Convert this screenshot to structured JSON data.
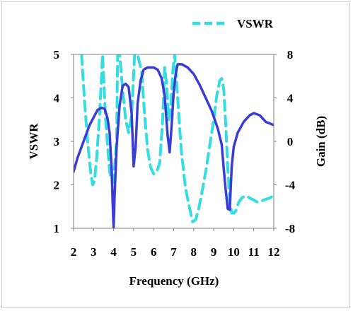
{
  "chart_data": {
    "type": "line",
    "xlabel": "Frequency (GHz)",
    "ylabel": "VSWR",
    "ylabel_right": "Gain (dB)",
    "xlim": [
      2,
      12
    ],
    "ylim": [
      1,
      5
    ],
    "ylim_right": [
      -8,
      8
    ],
    "x_ticks": [
      "2",
      "3",
      "4",
      "5",
      "6",
      "7",
      "8",
      "9",
      "10",
      "11",
      "12"
    ],
    "y_ticks_left": [
      "1",
      "2",
      "3",
      "4",
      "5"
    ],
    "y_ticks_right": [
      "-8",
      "-4",
      "0",
      "4",
      "8"
    ],
    "grid": false,
    "legend_position": "top-right",
    "series": [
      {
        "name": "VSWR",
        "axis": "left",
        "style": "dashed",
        "color": "#33dde0",
        "x": [
          2.4,
          2.55,
          2.7,
          2.85,
          2.95,
          3.05,
          3.15,
          3.3,
          3.45,
          3.55,
          3.6,
          3.8,
          3.95,
          4.05,
          4.15,
          4.2,
          4.3,
          4.45,
          4.6,
          4.75,
          4.9,
          5.05,
          5.2,
          5.4,
          5.55,
          5.7,
          5.85,
          6.0,
          6.15,
          6.3,
          6.45,
          6.55,
          6.65,
          6.75,
          6.85,
          6.95,
          7.05,
          7.2,
          7.3,
          7.4,
          7.6,
          7.8,
          7.95,
          8.1,
          8.25,
          8.4,
          8.6,
          8.8,
          9.0,
          9.15,
          9.3,
          9.4,
          9.5,
          9.6,
          9.7,
          9.8,
          9.9,
          10.0,
          10.1,
          10.25,
          10.4,
          10.6,
          10.8,
          11.0,
          11.2,
          11.5,
          11.8,
          12.0
        ],
        "values": [
          5.0,
          3.9,
          3.0,
          2.3,
          2.0,
          2.1,
          2.6,
          3.6,
          5.0,
          4.0,
          3.5,
          2.3,
          2.05,
          2.4,
          3.0,
          5.0,
          5.0,
          4.2,
          3.5,
          3.2,
          3.6,
          5.0,
          5.0,
          4.6,
          3.6,
          2.8,
          2.4,
          2.25,
          2.3,
          2.5,
          3.5,
          4.7,
          4.3,
          3.5,
          3.7,
          4.6,
          5.0,
          4.0,
          3.3,
          2.7,
          1.9,
          1.45,
          1.15,
          1.2,
          1.45,
          1.8,
          2.3,
          2.9,
          3.5,
          4.05,
          4.4,
          4.45,
          4.2,
          3.4,
          2.4,
          1.6,
          1.35,
          1.35,
          1.4,
          1.6,
          1.7,
          1.75,
          1.7,
          1.65,
          1.6,
          1.65,
          1.7,
          1.75
        ]
      },
      {
        "name": "Gain",
        "axis": "right",
        "style": "solid",
        "color": "#3b3bd6",
        "x": [
          2.0,
          2.2,
          2.5,
          2.8,
          3.0,
          3.2,
          3.4,
          3.55,
          3.7,
          3.8,
          3.9,
          3.95,
          4.0,
          4.05,
          4.15,
          4.3,
          4.45,
          4.6,
          4.75,
          4.9,
          5.0,
          5.1,
          5.2,
          5.35,
          5.5,
          5.7,
          6.0,
          6.2,
          6.4,
          6.55,
          6.7,
          6.8,
          6.9,
          7.0,
          7.1,
          7.2,
          7.4,
          7.7,
          8.0,
          8.3,
          8.6,
          8.9,
          9.2,
          9.4,
          9.5,
          9.6,
          9.7,
          9.8,
          9.9,
          10.0,
          10.2,
          10.5,
          10.8,
          11.0,
          11.3,
          11.6,
          12.0
        ],
        "values": [
          -2.8,
          -1.5,
          0.0,
          1.5,
          2.2,
          2.9,
          3.1,
          3.0,
          2.1,
          0.8,
          -2.5,
          -5.5,
          -7.9,
          -5.0,
          -0.5,
          3.3,
          5.1,
          5.3,
          5.0,
          2.6,
          -2.3,
          -0.5,
          3.5,
          5.6,
          6.6,
          6.8,
          6.8,
          6.6,
          5.8,
          4.2,
          0.5,
          -1.0,
          1.5,
          4.5,
          6.2,
          7.1,
          7.1,
          6.8,
          6.2,
          5.2,
          4.0,
          2.8,
          1.2,
          -0.3,
          -2.5,
          -4.5,
          -6.2,
          -6.3,
          -2.3,
          -0.5,
          0.8,
          1.8,
          2.4,
          2.6,
          2.4,
          1.8,
          1.5
        ]
      }
    ]
  }
}
